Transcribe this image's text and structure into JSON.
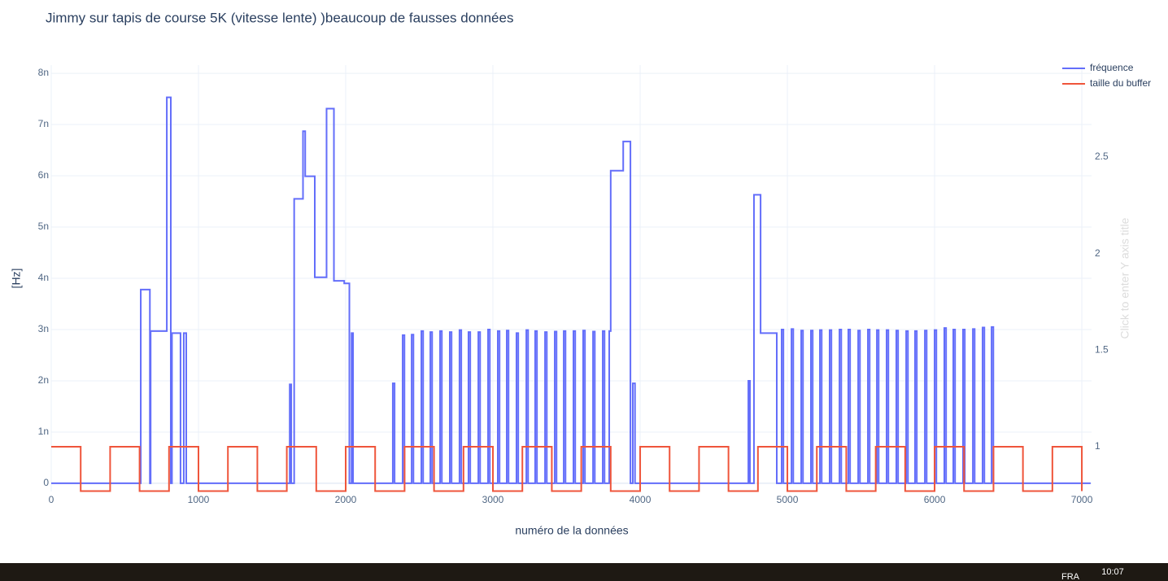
{
  "chart_data": {
    "type": "line",
    "line_shape": "hv",
    "title": "Jimmy sur tapis de course 5K (vitesse lente) )beaucoup de fausses données",
    "x_label": "numéro de la données",
    "y_label": "[Hz]",
    "y2_label": "Click to enter Y axis title",
    "xlim": [
      0,
      7066
    ],
    "xticks": [
      0,
      1000,
      2000,
      3000,
      4000,
      5000,
      6000,
      7000
    ],
    "ylim": [
      -1.6e-10,
      8.16e-09
    ],
    "yticks": [
      0,
      {
        "value": 1e-09,
        "label": "1n"
      },
      {
        "value": 2e-09,
        "label": "2n"
      },
      {
        "value": 3e-09,
        "label": "3n"
      },
      {
        "value": 4e-09,
        "label": "4n"
      },
      {
        "value": 5e-09,
        "label": "5n"
      },
      {
        "value": 6e-09,
        "label": "6n"
      },
      {
        "value": 7e-09,
        "label": "7n"
      },
      {
        "value": 8e-09,
        "label": "8n"
      }
    ],
    "y2lim": [
      0.768,
      2.976
    ],
    "y2ticks": [
      1,
      1.5,
      2,
      2.5
    ],
    "grid": true,
    "legend": "top-right",
    "series": [
      {
        "name": "fréquence",
        "color": "#636efa",
        "x": [
          0,
          608,
          670,
          675,
          785,
          812,
          820,
          878,
          900,
          917,
          1620,
          1630,
          1650,
          1710,
          1725,
          1790,
          1870,
          1920,
          1990,
          2025,
          2040,
          2050,
          2320,
          2332,
          2387,
          2399,
          2448,
          2460,
          2514,
          2526,
          2575,
          2587,
          2641,
          2653,
          2707,
          2719,
          2773,
          2785,
          2834,
          2846,
          2901,
          2913,
          2967,
          2979,
          3033,
          3045,
          3094,
          3106,
          3160,
          3172,
          3227,
          3239,
          3287,
          3299,
          3354,
          3366,
          3420,
          3432,
          3481,
          3493,
          3547,
          3559,
          3613,
          3625,
          3680,
          3692,
          3746,
          3758,
          3790,
          3800,
          3885,
          3934,
          3950,
          3965,
          4735,
          4746,
          4773,
          4818,
          4928,
          4961,
          4973,
          5028,
          5040,
          5094,
          5106,
          5160,
          5172,
          5221,
          5233,
          5287,
          5299,
          5354,
          5366,
          5414,
          5426,
          5481,
          5493,
          5547,
          5559,
          5608,
          5620,
          5674,
          5686,
          5740,
          5752,
          5807,
          5819,
          5867,
          5879,
          5934,
          5946,
          6000,
          6012,
          6066,
          6078,
          6127,
          6139,
          6193,
          6205,
          6260,
          6272,
          6326,
          6338,
          6387,
          6399,
          7060
        ],
        "values": [
          0,
          3.78e-09,
          0,
          2.97e-09,
          7.53e-09,
          0,
          2.93e-09,
          0,
          2.93e-09,
          0,
          1.93e-09,
          0,
          5.55e-09,
          6.87e-09,
          5.99e-09,
          4.02e-09,
          7.31e-09,
          3.95e-09,
          3.9e-09,
          0,
          2.93e-09,
          0,
          1.95e-09,
          0,
          2.89e-09,
          0,
          2.9e-09,
          0,
          2.97e-09,
          0,
          2.95e-09,
          0,
          2.97e-09,
          0,
          2.95e-09,
          0,
          2.99e-09,
          0,
          2.95e-09,
          0,
          2.95e-09,
          0,
          3e-09,
          0,
          2.97e-09,
          0,
          2.98e-09,
          0,
          2.93e-09,
          0,
          2.99e-09,
          0,
          2.97e-09,
          0,
          2.95e-09,
          0,
          2.96e-09,
          0,
          2.97e-09,
          0,
          2.97e-09,
          0,
          2.98e-09,
          0,
          2.96e-09,
          0,
          2.97e-09,
          0,
          2.97e-09,
          6.1e-09,
          6.67e-09,
          0,
          1.95e-09,
          0,
          2e-09,
          0,
          5.63e-09,
          2.93e-09,
          0,
          3e-09,
          0,
          3.01e-09,
          0,
          2.98e-09,
          0,
          2.98e-09,
          0,
          2.99e-09,
          0,
          2.99e-09,
          0,
          3e-09,
          0,
          3e-09,
          0,
          2.98e-09,
          0,
          3e-09,
          0,
          2.99e-09,
          0,
          2.99e-09,
          0,
          2.98e-09,
          0,
          2.97e-09,
          0,
          2.97e-09,
          0,
          2.98e-09,
          0,
          2.99e-09,
          0,
          3.03e-09,
          0,
          3e-09,
          0,
          3e-09,
          0,
          3.01e-09,
          0,
          3.04e-09,
          0,
          3.05e-09,
          0,
          0
        ]
      },
      {
        "name": "taille du buffer",
        "color": "#ef553b",
        "axis": "y2",
        "x": [
          0,
          200,
          400,
          600,
          800,
          1000,
          1200,
          1400,
          1600,
          1800,
          2000,
          2200,
          2400,
          2600,
          2800,
          3000,
          3200,
          3400,
          3600,
          3800,
          4000,
          4200,
          4400,
          4600,
          4800,
          5000,
          5200,
          5400,
          5600,
          5800,
          6000,
          6200,
          6400,
          6600,
          6800,
          7000
        ],
        "values": [
          1,
          0.77,
          1,
          0.77,
          1,
          0.77,
          1,
          0.77,
          1,
          0.77,
          1,
          0.77,
          1,
          0.77,
          1,
          0.77,
          1,
          0.77,
          1,
          0.77,
          1,
          0.77,
          1,
          0.77,
          1,
          0.77,
          1,
          0.77,
          1,
          0.77,
          1,
          0.77,
          1,
          0.77,
          1,
          0.77
        ]
      }
    ]
  },
  "taskbar": {
    "language": "FRA",
    "time": "10:07"
  }
}
